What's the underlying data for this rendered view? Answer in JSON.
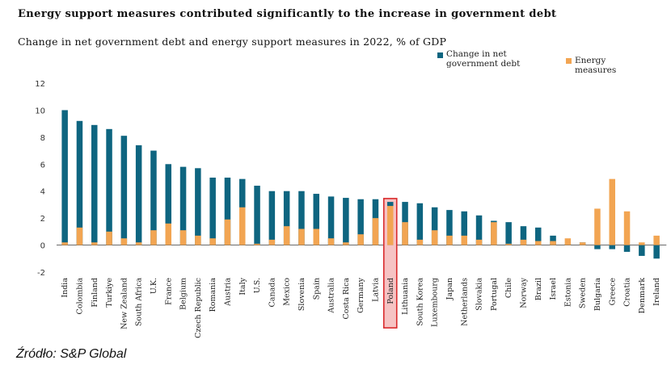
{
  "title": "Energy support measures contributed significantly to the increase in government debt",
  "subtitle": "Change in net government debt and energy support measures in 2022, % of GDP",
  "source": "Źródło: S&P Global",
  "colors": {
    "debt": "#0e6580",
    "energy": "#f2a552",
    "highlight": "#d9292b",
    "highlight_fill": "#f6c3c3"
  },
  "chart_data": {
    "type": "bar",
    "title": "Energy support measures contributed significantly to the increase in government debt",
    "subtitle": "Change in net government debt and energy support measures in 2022, % of GDP",
    "xlabel": "",
    "ylabel": "",
    "ylim": [
      -2,
      12
    ],
    "yticks": [
      -2,
      0,
      2,
      4,
      6,
      8,
      10,
      12
    ],
    "ytick_labels": [
      "-2",
      "0",
      "2",
      "4",
      "6",
      "8",
      "10",
      "12"
    ],
    "grid": false,
    "legend_position": "top-right",
    "highlighted_category": "Poland",
    "categories": [
      "India",
      "Colombia",
      "Finland",
      "Turkiye",
      "New Zealand",
      "South Africa",
      "U.K.",
      "France",
      "Belgium",
      "Czech Republic",
      "Romania",
      "Austria",
      "Italy",
      "U.S.",
      "Canada",
      "Mexico",
      "Slovenia",
      "Spain",
      "Australia",
      "Costa Rica",
      "Germany",
      "Latvia",
      "Poland",
      "Lithuania",
      "South Korea",
      "Luxembourg",
      "Japan",
      "Netherlands",
      "Slovakia",
      "Portugal",
      "Chile",
      "Norway",
      "Brazil",
      "Israel",
      "Estonia",
      "Sweden",
      "Bulgaria",
      "Greece",
      "Croatia",
      "Denmark",
      "Ireland"
    ],
    "series": [
      {
        "name": "Change in net government debt",
        "values": [
          10.0,
          9.2,
          8.9,
          8.6,
          8.1,
          7.4,
          7.0,
          6.0,
          5.8,
          5.7,
          5.0,
          5.0,
          4.9,
          4.4,
          4.0,
          4.0,
          4.0,
          3.8,
          3.6,
          3.5,
          3.4,
          3.4,
          3.2,
          3.2,
          3.1,
          2.8,
          2.6,
          2.5,
          2.2,
          1.8,
          1.7,
          1.4,
          1.3,
          0.7,
          0.1,
          0.2,
          -0.3,
          -0.3,
          -0.5,
          -0.8,
          -1.0
        ]
      },
      {
        "name": "Energy measures",
        "values": [
          0.2,
          1.3,
          0.2,
          1.0,
          0.5,
          0.2,
          1.1,
          1.6,
          1.1,
          0.7,
          0.5,
          1.9,
          2.8,
          0.1,
          0.4,
          1.4,
          1.2,
          1.2,
          0.5,
          0.2,
          0.8,
          2.0,
          2.9,
          1.7,
          0.4,
          1.1,
          0.7,
          0.7,
          0.4,
          1.7,
          0.1,
          0.4,
          0.3,
          0.3,
          0.5,
          0.2,
          2.7,
          4.9,
          2.5,
          0.2,
          0.7
        ]
      }
    ]
  },
  "legend": {
    "debt_label": "Change in net government debt",
    "energy_label": "Energy measures"
  }
}
